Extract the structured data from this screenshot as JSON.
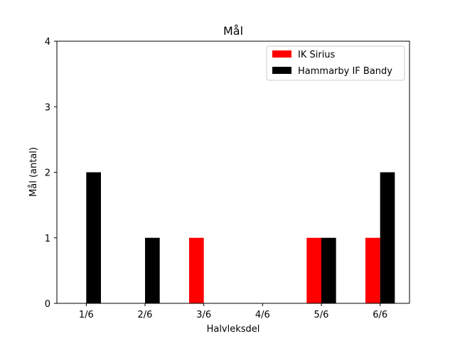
{
  "chart_data": {
    "type": "bar",
    "title": "Mål",
    "xlabel": "Halvleksdel",
    "ylabel": "Mål (antal)",
    "categories": [
      "1/6",
      "2/6",
      "3/6",
      "4/6",
      "5/6",
      "6/6"
    ],
    "series": [
      {
        "name": "IK Sirius",
        "color": "#ff0000",
        "values": [
          0,
          0,
          1,
          0,
          1,
          1
        ]
      },
      {
        "name": "Hammarby IF Bandy",
        "color": "#000000",
        "values": [
          2,
          1,
          0,
          0,
          1,
          2
        ]
      }
    ],
    "ylim": [
      0,
      4
    ],
    "yticks": [
      0,
      1,
      2,
      3,
      4
    ],
    "grid": false,
    "legend_position": "top-right"
  }
}
